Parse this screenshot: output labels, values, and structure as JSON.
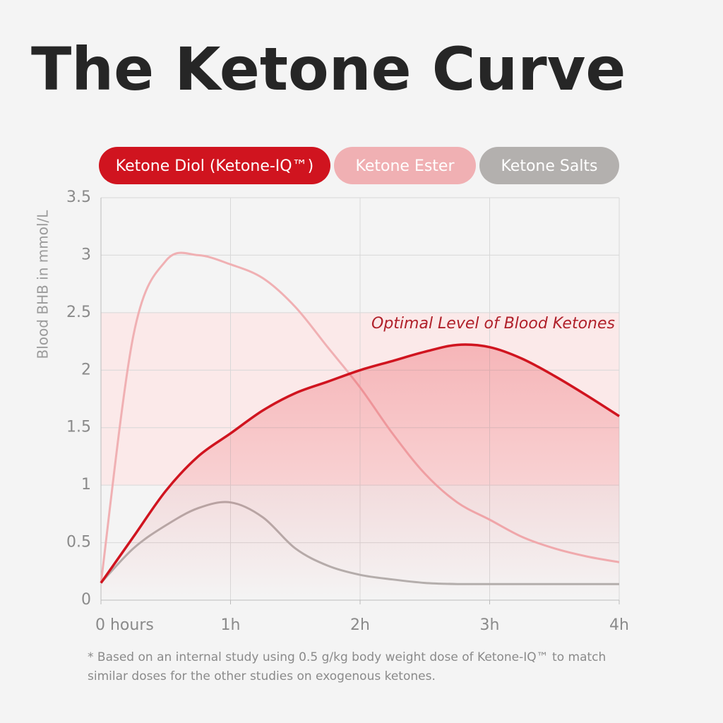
{
  "chart_data": {
    "type": "line",
    "title": "The Ketone Curve",
    "y_label": "Blood BHB in mmol/L",
    "x": [
      0,
      0.25,
      0.5,
      0.75,
      1,
      1.25,
      1.5,
      1.75,
      2,
      2.25,
      2.5,
      2.75,
      3,
      3.25,
      3.5,
      3.75,
      4
    ],
    "series": [
      {
        "name": "Ketone Diol (Ketone-IQ™)",
        "color": "#d0141f",
        "values": [
          0.15,
          0.55,
          0.95,
          1.25,
          1.45,
          1.65,
          1.8,
          1.9,
          2.0,
          2.08,
          2.16,
          2.22,
          2.2,
          2.1,
          1.95,
          1.78,
          1.6
        ]
      },
      {
        "name": "Ketone Ester",
        "color": "#f0b0b3",
        "values": [
          0.15,
          2.3,
          2.95,
          3.0,
          2.92,
          2.8,
          2.55,
          2.2,
          1.85,
          1.45,
          1.1,
          0.85,
          0.7,
          0.55,
          0.45,
          0.38,
          0.33
        ]
      },
      {
        "name": "Ketone Salts",
        "color": "#b3b0ae",
        "values": [
          0.15,
          0.45,
          0.65,
          0.8,
          0.85,
          0.72,
          0.45,
          0.3,
          0.22,
          0.18,
          0.15,
          0.14,
          0.14,
          0.14,
          0.14,
          0.14,
          0.14
        ]
      }
    ],
    "optimal_range": [
      1,
      2.5
    ],
    "annotation": "Optimal Level of Blood Ketones",
    "xlim": [
      0,
      4
    ],
    "xticks": [
      {
        "value": 0,
        "label": "0 hours"
      },
      {
        "value": 1,
        "label": "1h"
      },
      {
        "value": 2,
        "label": "2h"
      },
      {
        "value": 3,
        "label": "3h"
      },
      {
        "value": 4,
        "label": "4h"
      }
    ],
    "ylim": [
      0,
      3.5
    ],
    "yticks": [
      0,
      0.5,
      1,
      1.5,
      2,
      2.5,
      3,
      3.5
    ],
    "grid": true,
    "footnote": "* Based on an internal study using 0.5 g/kg body weight dose of Ketone-IQ™ to match similar doses for the other studies on exogenous ketones."
  }
}
